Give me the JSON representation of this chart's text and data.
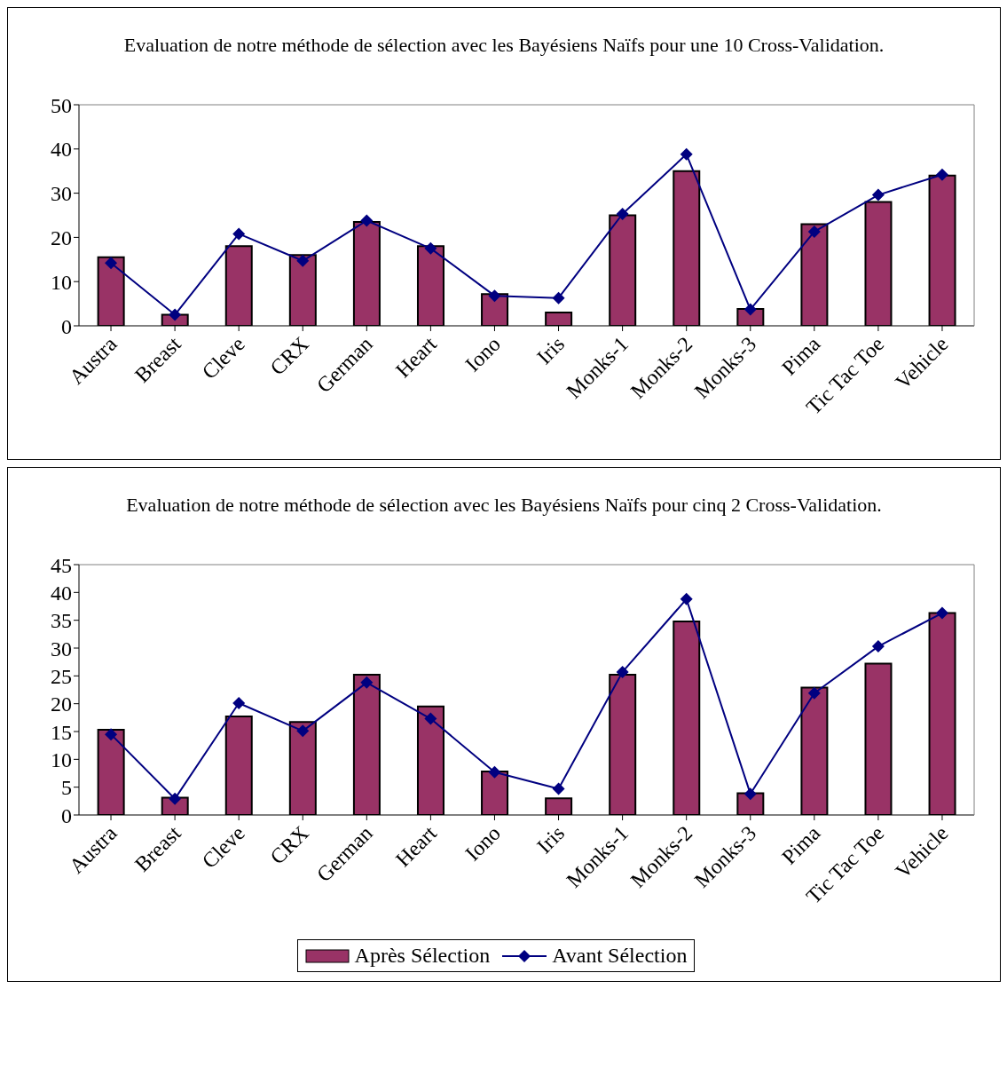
{
  "chart_data": [
    {
      "type": "bar",
      "title": "Evaluation de notre méthode de sélection avec les Bayésiens Naïfs pour une 10 Cross-Validation.",
      "categories": [
        "Austra",
        "Breast",
        "Cleve",
        "CRX",
        "German",
        "Heart",
        "Iono",
        "Iris",
        "Monks-1",
        "Monks-2",
        "Monks-3",
        "Pima",
        "Tic Tac Toe",
        "Vehicle"
      ],
      "series": [
        {
          "color": "#993366",
          "values": [
            15.5,
            2.5,
            18,
            16,
            23.5,
            18,
            7.2,
            3,
            25,
            35,
            3.8,
            23,
            28,
            34
          ]
        },
        {
          "type": "line",
          "color": "#000080",
          "values": [
            14.2,
            2.5,
            20.8,
            14.7,
            23.8,
            17.5,
            6.8,
            6.3,
            25.3,
            38.8,
            3.7,
            21.3,
            29.6,
            34.2
          ]
        }
      ],
      "ylim": [
        0,
        50
      ],
      "yticks": [
        0,
        10,
        20,
        30,
        40,
        50
      ],
      "grid": false,
      "legend": false,
      "marker": "diamond"
    },
    {
      "type": "bar",
      "title": "Evaluation de notre méthode de sélection avec les Bayésiens Naïfs pour cinq 2 Cross-Validation.",
      "categories": [
        "Austra",
        "Breast",
        "Cleve",
        "CRX",
        "German",
        "Heart",
        "Iono",
        "Iris",
        "Monks-1",
        "Monks-2",
        "Monks-3",
        "Pima",
        "Tic Tac Toe",
        "Vehicle"
      ],
      "series": [
        {
          "name": "Après Sélection",
          "color": "#993366",
          "values": [
            15.3,
            3.1,
            17.7,
            16.7,
            25.2,
            19.5,
            7.8,
            3,
            25.2,
            34.8,
            3.9,
            22.9,
            27.2,
            36.3
          ]
        },
        {
          "type": "line",
          "name": "Avant Sélection",
          "color": "#000080",
          "values": [
            14.5,
            2.9,
            20.1,
            15.1,
            23.8,
            17.3,
            7.7,
            4.7,
            25.7,
            38.8,
            3.8,
            21.9,
            30.3,
            36.3
          ]
        }
      ],
      "ylim": [
        0,
        45
      ],
      "yticks": [
        0,
        5,
        10,
        15,
        20,
        25,
        30,
        35,
        40,
        45
      ],
      "grid": false,
      "legend": "bottom",
      "marker": "diamond"
    }
  ]
}
